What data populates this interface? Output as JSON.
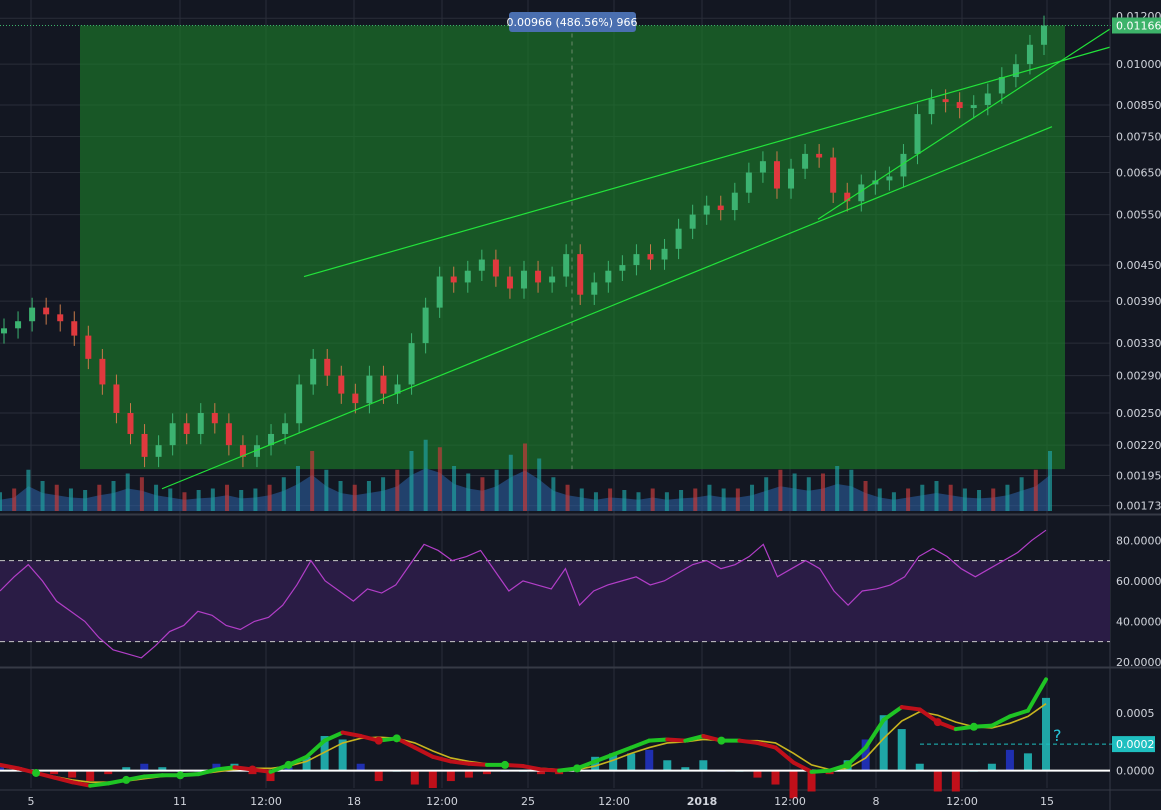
{
  "colors": {
    "background": "#131722",
    "grid": "#2a2e39",
    "up_candle": "#3cb371",
    "down_candle": "#e0393e",
    "wick_down": "#c87b4a",
    "measure_zone": "#1c7a2a",
    "trend_line": "#22e33a",
    "volume_up": "#1f9e9e",
    "volume_down": "#c23a3a",
    "volume_area": "#2b5e9e",
    "rsi_line": "#b23ec8",
    "rsi_band": "#2a1c45",
    "macd_line": "#1fc424",
    "signal_line": "#c8b41f",
    "histogram_up": "#1fa6a6",
    "histogram_up_dark": "#1f2fb0",
    "histogram_down": "#c0101a",
    "price_badge": "#3db36a",
    "info_badge": "#4a6fb0",
    "macd_badge": "#1fbfc0"
  },
  "measure_label": "0.00966 (486.56%) 966",
  "current_price_label": "0.01166",
  "macd_value_label": "0.0002",
  "question_mark": "?",
  "icons": {
    "question": "question-mark-annotation"
  },
  "chart_data": [
    {
      "type": "candlestick",
      "pane": "price",
      "scale": "log",
      "x_tick_labels": [
        "5",
        "11",
        "12:00",
        "18",
        "12:00",
        "25",
        "12:00",
        "2018",
        "12:00",
        "8",
        "12:00",
        "15"
      ],
      "y_tick_labels": [
        "0.01200",
        "0.01000",
        "0.00850",
        "0.00750",
        "0.00650",
        "0.00550",
        "0.00450",
        "0.00390",
        "0.00330",
        "0.00290",
        "0.00250",
        "0.00220",
        "0.00195",
        "0.00173"
      ],
      "ylim": [
        0.00168,
        0.0125
      ],
      "grid": true,
      "close_series": [
        0.0035,
        0.0036,
        0.0038,
        0.0037,
        0.0036,
        0.0034,
        0.0031,
        0.0028,
        0.0025,
        0.0023,
        0.0021,
        0.0022,
        0.0024,
        0.0023,
        0.0025,
        0.0024,
        0.0022,
        0.0021,
        0.0022,
        0.0023,
        0.0024,
        0.0028,
        0.0031,
        0.0029,
        0.0027,
        0.0026,
        0.0029,
        0.0027,
        0.0028,
        0.0033,
        0.0038,
        0.0043,
        0.0042,
        0.0044,
        0.0046,
        0.0043,
        0.0041,
        0.0044,
        0.0042,
        0.0043,
        0.0047,
        0.004,
        0.0042,
        0.0044,
        0.0045,
        0.0047,
        0.0046,
        0.0048,
        0.0052,
        0.0055,
        0.0057,
        0.0056,
        0.006,
        0.0065,
        0.0068,
        0.0061,
        0.0066,
        0.007,
        0.0069,
        0.006,
        0.0058,
        0.0062,
        0.0063,
        0.0064,
        0.007,
        0.0082,
        0.0087,
        0.0086,
        0.0084,
        0.0085,
        0.0089,
        0.0095,
        0.01,
        0.0108,
        0.01166
      ],
      "measure": {
        "change": 0.00966,
        "percent": 486.56,
        "bars": 966
      },
      "trend_lines": [
        {
          "name": "channel-upper",
          "from": [
            0.0043,
            0.0107
          ]
        },
        {
          "name": "channel-lower",
          "from": [
            0.00185,
            0.0078
          ]
        },
        {
          "name": "wedge-lower",
          "from": [
            0.0054,
            0.0115
          ]
        }
      ]
    },
    {
      "type": "bar",
      "pane": "volume",
      "values_relative": [
        0.25,
        0.3,
        0.55,
        0.4,
        0.35,
        0.3,
        0.28,
        0.35,
        0.4,
        0.5,
        0.45,
        0.35,
        0.3,
        0.25,
        0.28,
        0.3,
        0.35,
        0.28,
        0.3,
        0.35,
        0.45,
        0.6,
        0.8,
        0.55,
        0.4,
        0.35,
        0.4,
        0.45,
        0.55,
        0.8,
        0.95,
        0.85,
        0.6,
        0.5,
        0.45,
        0.55,
        0.75,
        0.9,
        0.7,
        0.45,
        0.35,
        0.3,
        0.25,
        0.3,
        0.28,
        0.25,
        0.3,
        0.25,
        0.28,
        0.3,
        0.35,
        0.3,
        0.3,
        0.35,
        0.45,
        0.55,
        0.5,
        0.45,
        0.5,
        0.6,
        0.55,
        0.4,
        0.3,
        0.25,
        0.3,
        0.35,
        0.4,
        0.35,
        0.3,
        0.28,
        0.3,
        0.35,
        0.45,
        0.55,
        0.8
      ]
    },
    {
      "type": "line",
      "pane": "rsi",
      "y_tick_labels": [
        "80.0000",
        "60.0000",
        "40.0000",
        "20.0000"
      ],
      "ylim": [
        18,
        92
      ],
      "bands": [
        30,
        70
      ],
      "values": [
        55,
        62,
        68,
        60,
        50,
        45,
        40,
        32,
        26,
        24,
        22,
        28,
        35,
        38,
        45,
        43,
        38,
        36,
        40,
        42,
        48,
        58,
        70,
        60,
        55,
        50,
        56,
        54,
        58,
        68,
        78,
        75,
        70,
        72,
        75,
        65,
        55,
        60,
        58,
        56,
        66,
        48,
        55,
        58,
        60,
        62,
        58,
        60,
        64,
        68,
        70,
        66,
        68,
        72,
        78,
        62,
        66,
        70,
        66,
        55,
        48,
        55,
        56,
        58,
        62,
        72,
        76,
        72,
        66,
        62,
        66,
        70,
        74,
        80,
        85
      ]
    },
    {
      "type": "line",
      "pane": "macd",
      "y_tick_labels": [
        "0.0005",
        "0.0002",
        "0.0000"
      ],
      "ylim": [
        -0.00015,
        0.00088
      ],
      "macd": [
        5e-05,
        2e-05,
        -2e-05,
        -6e-05,
        -0.0001,
        -0.00013,
        -0.00011,
        -8e-05,
        -5e-05,
        -4e-05,
        -4e-05,
        -3e-05,
        1e-05,
        3e-05,
        1e-05,
        -1e-05,
        5e-05,
        0.00012,
        0.00026,
        0.00033,
        0.0003,
        0.00026,
        0.00028,
        0.0002,
        0.00012,
        8e-05,
        6e-05,
        5e-05,
        5e-05,
        4e-05,
        1e-05,
        0.0,
        2e-05,
        8e-05,
        0.00014,
        0.0002,
        0.00026,
        0.00027,
        0.00026,
        0.0003,
        0.00026,
        0.00026,
        0.00024,
        0.0002,
        7e-05,
        -1e-05,
        0.0,
        5e-05,
        0.0002,
        0.00044,
        0.00055,
        0.00053,
        0.00042,
        0.00036,
        0.00038,
        0.00039,
        0.00047,
        0.00052,
        0.00079
      ],
      "signal": [
        4e-05,
        1e-05,
        -2e-05,
        -5e-05,
        -8e-05,
        -0.0001,
        -0.0001,
        -9e-05,
        -7e-05,
        -5e-05,
        -4e-05,
        -3e-05,
        -1e-05,
        1e-05,
        2e-05,
        2e-05,
        4e-05,
        8e-05,
        0.00016,
        0.00024,
        0.00028,
        0.00029,
        0.00028,
        0.00024,
        0.00017,
        0.00011,
        8e-05,
        6e-05,
        5e-05,
        4e-05,
        2e-05,
        1e-05,
        1e-05,
        4e-05,
        9e-05,
        0.00015,
        0.0002,
        0.00024,
        0.00025,
        0.00027,
        0.00026,
        0.00026,
        0.00026,
        0.00024,
        0.00015,
        5e-05,
        1e-05,
        2e-05,
        0.00011,
        0.00028,
        0.00043,
        0.00051,
        0.00048,
        0.00042,
        0.00038,
        0.00037,
        0.00041,
        0.00047,
        0.00058
      ],
      "histogram": [
        1e-05,
        1e-05,
        0.0,
        -1e-05,
        -2e-05,
        -3e-05,
        -1e-05,
        1e-05,
        2e-05,
        1e-05,
        0.0,
        0.0,
        2e-05,
        2e-05,
        -1e-05,
        -3e-05,
        1e-05,
        4e-05,
        0.0001,
        9e-05,
        2e-05,
        -3e-05,
        0.0,
        -4e-05,
        -5e-05,
        -3e-05,
        -2e-05,
        -1e-05,
        0.0,
        0.0,
        -1e-05,
        -1e-05,
        1e-05,
        4e-05,
        5e-05,
        5e-05,
        6e-05,
        3e-05,
        1e-05,
        3e-05,
        0.0,
        0.0,
        -2e-05,
        -4e-05,
        -8e-05,
        -6e-05,
        -1e-05,
        3e-05,
        9e-05,
        0.00016,
        0.00012,
        2e-05,
        -6e-05,
        -6e-05,
        0.0,
        2e-05,
        6e-05,
        5e-05,
        0.00021
      ]
    }
  ]
}
